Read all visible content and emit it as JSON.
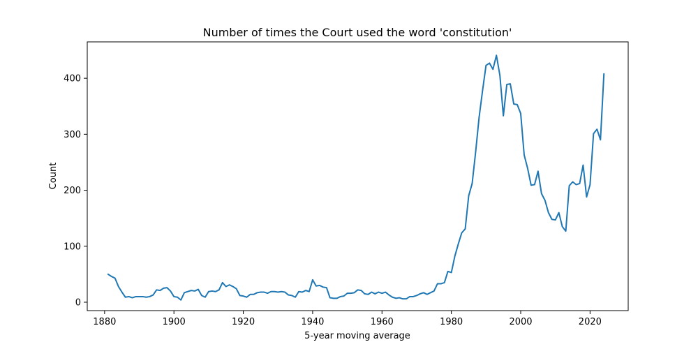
{
  "chart_data": {
    "type": "line",
    "title": "Number of times the Court used the word 'constitution'",
    "xlabel": "5-year moving average",
    "ylabel": "Count",
    "xlim": [
      1875,
      2031
    ],
    "ylim": [
      -15,
      465
    ],
    "xticks": [
      "1880",
      "1900",
      "1920",
      "1940",
      "1960",
      "1980",
      "2000",
      "2020"
    ],
    "yticks": [
      "0",
      "100",
      "200",
      "300",
      "400"
    ],
    "grid": false,
    "color": "#1f77b4",
    "x": [
      1881,
      1882,
      1883,
      1884,
      1885,
      1886,
      1887,
      1888,
      1889,
      1890,
      1891,
      1892,
      1893,
      1894,
      1895,
      1896,
      1897,
      1898,
      1899,
      1900,
      1901,
      1902,
      1903,
      1904,
      1905,
      1906,
      1907,
      1908,
      1909,
      1910,
      1911,
      1912,
      1913,
      1914,
      1915,
      1916,
      1917,
      1918,
      1919,
      1920,
      1921,
      1922,
      1923,
      1924,
      1925,
      1926,
      1927,
      1928,
      1929,
      1930,
      1931,
      1932,
      1933,
      1934,
      1935,
      1936,
      1937,
      1938,
      1939,
      1940,
      1941,
      1942,
      1943,
      1944,
      1945,
      1946,
      1947,
      1948,
      1949,
      1950,
      1951,
      1952,
      1953,
      1954,
      1955,
      1956,
      1957,
      1958,
      1959,
      1960,
      1961,
      1962,
      1963,
      1964,
      1965,
      1966,
      1967,
      1968,
      1969,
      1970,
      1971,
      1972,
      1973,
      1974,
      1975,
      1976,
      1977,
      1978,
      1979,
      1980,
      1981,
      1982,
      1983,
      1984,
      1985,
      1986,
      1987,
      1988,
      1989,
      1990,
      1991,
      1992,
      1993,
      1994,
      1995,
      1996,
      1997,
      1998,
      1999,
      2000,
      2001,
      2002,
      2003,
      2004,
      2005,
      2006,
      2007,
      2008,
      2009,
      2010,
      2011,
      2012,
      2013,
      2014,
      2015,
      2016,
      2017,
      2018,
      2019,
      2020,
      2021,
      2022,
      2023,
      2024
    ],
    "y": [
      50,
      46,
      43,
      28,
      18,
      9,
      10,
      8,
      10,
      10,
      10,
      9,
      10,
      13,
      22,
      21,
      25,
      26,
      20,
      10,
      9,
      4,
      17,
      19,
      21,
      20,
      23,
      12,
      9,
      19,
      20,
      19,
      22,
      35,
      28,
      31,
      28,
      24,
      12,
      11,
      9,
      14,
      14,
      17,
      18,
      18,
      16,
      19,
      19,
      18,
      19,
      18,
      13,
      12,
      9,
      19,
      18,
      21,
      19,
      40,
      29,
      30,
      27,
      26,
      8,
      7,
      7,
      10,
      11,
      16,
      16,
      17,
      22,
      21,
      15,
      14,
      18,
      15,
      18,
      16,
      18,
      13,
      9,
      7,
      8,
      6,
      6,
      10,
      10,
      12,
      15,
      17,
      14,
      17,
      20,
      33,
      33,
      35,
      55,
      53,
      82,
      104,
      124,
      131,
      190,
      212,
      268,
      330,
      378,
      423,
      427,
      416,
      441,
      405,
      333,
      389,
      390,
      354,
      353,
      337,
      263,
      239,
      209,
      210,
      234,
      194,
      182,
      160,
      148,
      147,
      160,
      135,
      127,
      208,
      215,
      210,
      212,
      245,
      188,
      210,
      301,
      309,
      290,
      408
    ]
  }
}
